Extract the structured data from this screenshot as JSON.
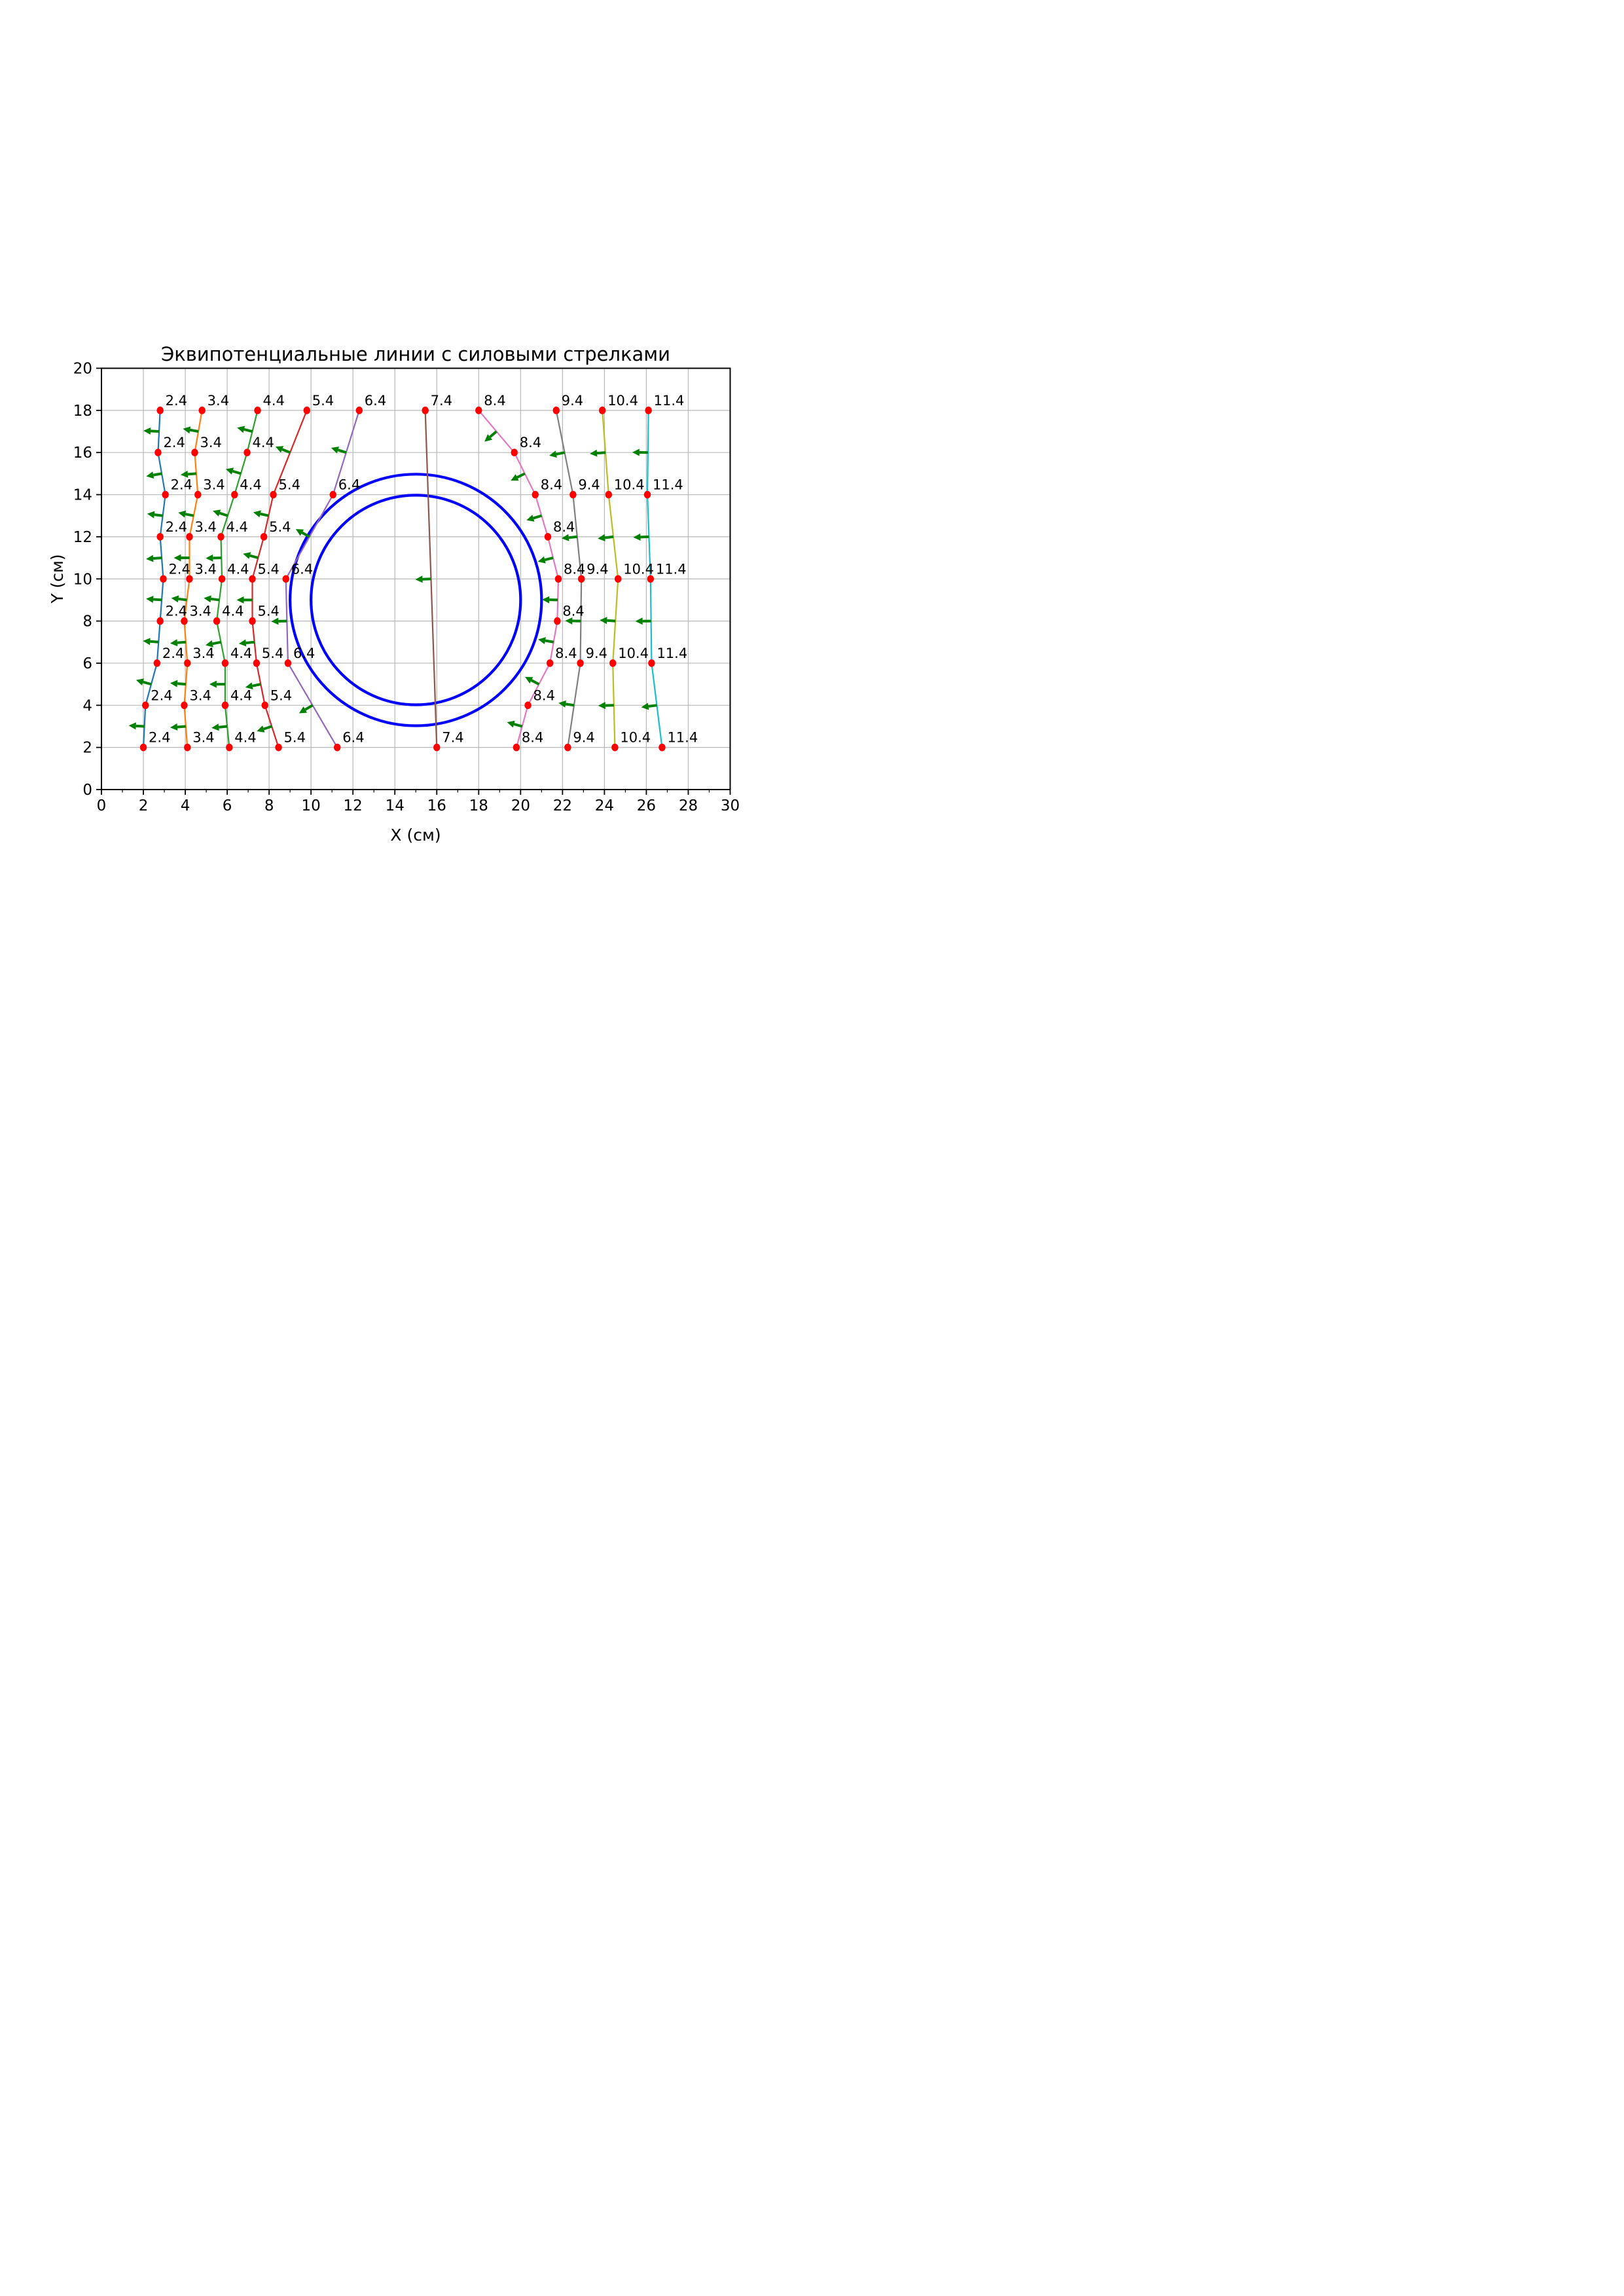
{
  "chart_data": {
    "type": "line",
    "title": "Эквипотенциальные линии с силовыми стрелками",
    "xlabel": "X (см)",
    "ylabel": "Y (см)",
    "xlim": [
      0,
      30
    ],
    "ylim": [
      0,
      20
    ],
    "xticks": [
      0,
      2,
      4,
      6,
      8,
      10,
      12,
      14,
      16,
      18,
      20,
      22,
      24,
      26,
      28,
      30
    ],
    "x_minor_ticks": [
      1,
      3,
      5,
      7,
      9,
      11,
      13,
      15,
      17,
      19,
      21,
      23,
      25,
      27,
      29
    ],
    "yticks": [
      0,
      2,
      4,
      6,
      8,
      10,
      12,
      14,
      16,
      18,
      20
    ],
    "grid": true,
    "grid_color": "#b8b8b8",
    "marker_color": "#ff0000",
    "arrow_color": "#008000",
    "arrow_length_units": 0.75,
    "arrow_rule": "one arrow per segment, at segment midpoint, perpendicular to segment, pointing toward -x",
    "electrode_circles": {
      "color": "#0000ff",
      "cx": 15,
      "cy": 9,
      "radii": [
        5,
        6
      ]
    },
    "series": [
      {
        "label": "2.4",
        "color": "#1f77b4",
        "points": [
          [
            2.8,
            18
          ],
          [
            2.7,
            16
          ],
          [
            3.05,
            14
          ],
          [
            2.8,
            12
          ],
          [
            2.95,
            10
          ],
          [
            2.8,
            8
          ],
          [
            2.65,
            6
          ],
          [
            2.1,
            4
          ],
          [
            2.0,
            2
          ]
        ]
      },
      {
        "label": "3.4",
        "color": "#ff7f0e",
        "points": [
          [
            4.8,
            18
          ],
          [
            4.45,
            16
          ],
          [
            4.6,
            14
          ],
          [
            4.2,
            12
          ],
          [
            4.2,
            10
          ],
          [
            3.95,
            8
          ],
          [
            4.1,
            6
          ],
          [
            3.95,
            4
          ],
          [
            4.1,
            2
          ]
        ]
      },
      {
        "label": "4.4",
        "color": "#2ca02c",
        "points": [
          [
            7.45,
            18
          ],
          [
            6.95,
            16
          ],
          [
            6.35,
            14
          ],
          [
            5.7,
            12
          ],
          [
            5.75,
            10
          ],
          [
            5.5,
            8
          ],
          [
            5.9,
            6
          ],
          [
            5.9,
            4
          ],
          [
            6.1,
            2
          ]
        ]
      },
      {
        "label": "5.4",
        "color": "#d62728",
        "points": [
          [
            9.8,
            18
          ],
          [
            8.2,
            14
          ],
          [
            7.75,
            12
          ],
          [
            7.2,
            10
          ],
          [
            7.2,
            8
          ],
          [
            7.4,
            6
          ],
          [
            7.8,
            4
          ],
          [
            8.45,
            2
          ]
        ]
      },
      {
        "label": "6.4",
        "color": "#9467bd",
        "points": [
          [
            12.3,
            18
          ],
          [
            11.05,
            14
          ],
          [
            8.8,
            10
          ],
          [
            8.9,
            6
          ],
          [
            11.25,
            2
          ]
        ]
      },
      {
        "label": "7.4",
        "color": "#8c564b",
        "points": [
          [
            15.45,
            18
          ],
          [
            16.0,
            2
          ]
        ]
      },
      {
        "label": "8.4",
        "color": "#e377c2",
        "points": [
          [
            18.0,
            18
          ],
          [
            19.7,
            16
          ],
          [
            20.7,
            14
          ],
          [
            21.3,
            12
          ],
          [
            21.8,
            10
          ],
          [
            21.75,
            8
          ],
          [
            21.4,
            6
          ],
          [
            20.35,
            4
          ],
          [
            19.8,
            2
          ]
        ]
      },
      {
        "label": "9.4",
        "color": "#7f7f7f",
        "points": [
          [
            21.7,
            18
          ],
          [
            22.5,
            14
          ],
          [
            22.9,
            10
          ],
          [
            22.85,
            6
          ],
          [
            22.25,
            2
          ]
        ]
      },
      {
        "label": "10.4",
        "color": "#bcbd22",
        "points": [
          [
            23.9,
            18
          ],
          [
            24.2,
            14
          ],
          [
            24.65,
            10
          ],
          [
            24.4,
            6
          ],
          [
            24.5,
            2
          ]
        ]
      },
      {
        "label": "11.4",
        "color": "#17becf",
        "points": [
          [
            26.1,
            18
          ],
          [
            26.05,
            14
          ],
          [
            26.2,
            10
          ],
          [
            26.25,
            6
          ],
          [
            26.75,
            2
          ]
        ]
      }
    ]
  }
}
